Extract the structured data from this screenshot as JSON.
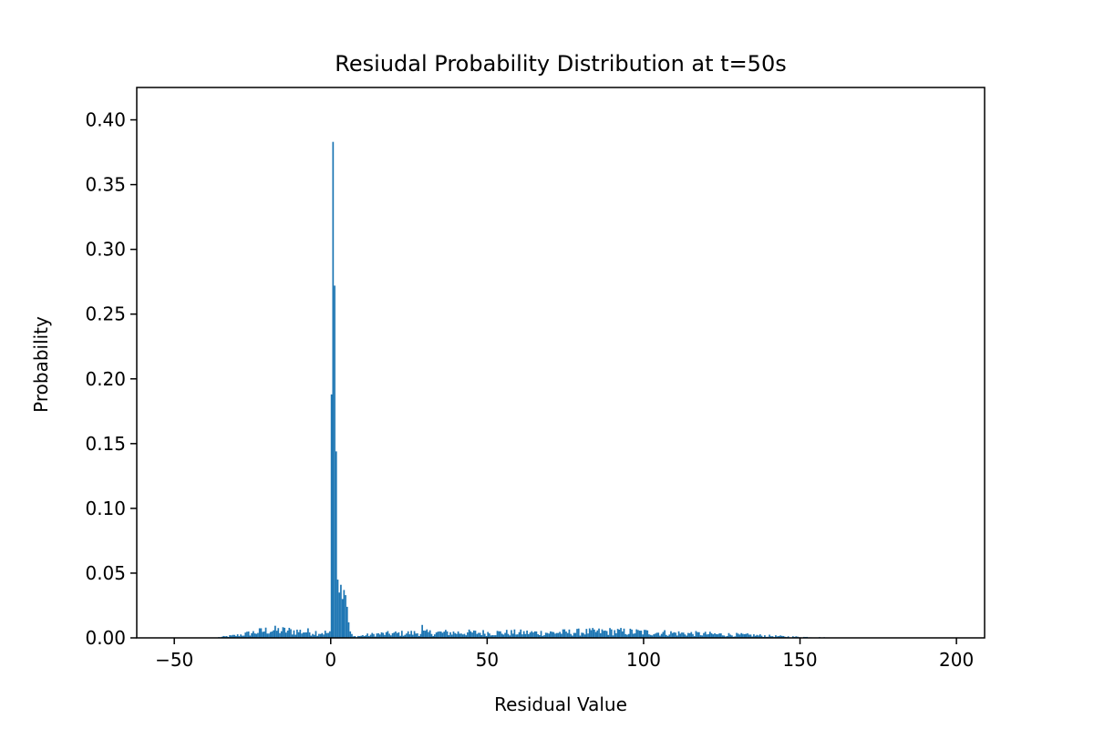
{
  "chart_data": {
    "type": "bar",
    "title": "Resiudal Probability Distribution at t=50s",
    "xlabel": "Residual Value",
    "ylabel": "Probability",
    "xlim": [
      -62,
      209
    ],
    "ylim": [
      0,
      0.425
    ],
    "xticks": [
      -50,
      0,
      50,
      100,
      150,
      200
    ],
    "xtick_labels": [
      "−50",
      "0",
      "50",
      "100",
      "150",
      "200"
    ],
    "yticks": [
      0.0,
      0.05,
      0.1,
      0.15,
      0.2,
      0.25,
      0.3,
      0.35,
      0.4
    ],
    "ytick_labels": [
      "0.00",
      "0.05",
      "0.10",
      "0.15",
      "0.20",
      "0.25",
      "0.30",
      "0.35",
      "0.40"
    ],
    "grid": false,
    "bar_color": "#1f77b4",
    "bin_width": 0.5,
    "peak_bins": [
      {
        "x": 0.0,
        "y": 0.188
      },
      {
        "x": 0.5,
        "y": 0.383
      },
      {
        "x": 1.0,
        "y": 0.272
      },
      {
        "x": 1.5,
        "y": 0.144
      },
      {
        "x": 2.0,
        "y": 0.045
      },
      {
        "x": 2.5,
        "y": 0.035
      },
      {
        "x": 3.0,
        "y": 0.041
      },
      {
        "x": 3.5,
        "y": 0.03
      },
      {
        "x": 4.0,
        "y": 0.037
      },
      {
        "x": 4.5,
        "y": 0.033
      },
      {
        "x": 5.0,
        "y": 0.024
      },
      {
        "x": 5.5,
        "y": 0.012
      },
      {
        "x": 6.0,
        "y": 0.005
      },
      {
        "x": 6.5,
        "y": 0.003
      }
    ],
    "background_profile": [
      {
        "x": -36,
        "y": 0.0005
      },
      {
        "x": -30,
        "y": 0.002
      },
      {
        "x": -25,
        "y": 0.004
      },
      {
        "x": -20,
        "y": 0.006
      },
      {
        "x": -10,
        "y": 0.005
      },
      {
        "x": -2,
        "y": 0.004
      },
      {
        "x": 7,
        "y": 0.001
      },
      {
        "x": 15,
        "y": 0.003
      },
      {
        "x": 30,
        "y": 0.004
      },
      {
        "x": 50,
        "y": 0.004
      },
      {
        "x": 70,
        "y": 0.004
      },
      {
        "x": 90,
        "y": 0.005
      },
      {
        "x": 105,
        "y": 0.004
      },
      {
        "x": 120,
        "y": 0.003
      },
      {
        "x": 135,
        "y": 0.002
      },
      {
        "x": 145,
        "y": 0.001
      },
      {
        "x": 158,
        "y": 0.0003
      }
    ]
  }
}
